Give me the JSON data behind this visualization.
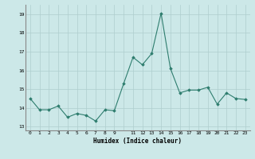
{
  "x": [
    0,
    1,
    2,
    3,
    4,
    5,
    6,
    7,
    8,
    9,
    10,
    11,
    12,
    13,
    14,
    15,
    16,
    17,
    18,
    19,
    20,
    21,
    22,
    23
  ],
  "y": [
    14.5,
    13.9,
    13.9,
    14.1,
    13.5,
    13.7,
    13.6,
    13.3,
    13.9,
    13.85,
    15.3,
    16.7,
    16.3,
    16.9,
    19.05,
    16.1,
    14.8,
    14.95,
    14.95,
    15.1,
    14.2,
    14.8,
    14.5,
    14.45
  ],
  "xlabel": "Humidex (Indice chaleur)",
  "line_color": "#2e7d6e",
  "bg_color": "#cce8e8",
  "grid_color": "#aecece",
  "tick_labels": [
    "0",
    "1",
    "2",
    "3",
    "4",
    "5",
    "6",
    "7",
    "8",
    "9",
    "",
    "11",
    "12",
    "13",
    "14",
    "15",
    "16",
    "17",
    "18",
    "19",
    "20",
    "21",
    "22",
    "23"
  ],
  "ylim": [
    12.8,
    19.5
  ],
  "yticks": [
    13,
    14,
    15,
    16,
    17,
    18,
    19
  ],
  "xlim": [
    -0.5,
    23.5
  ]
}
